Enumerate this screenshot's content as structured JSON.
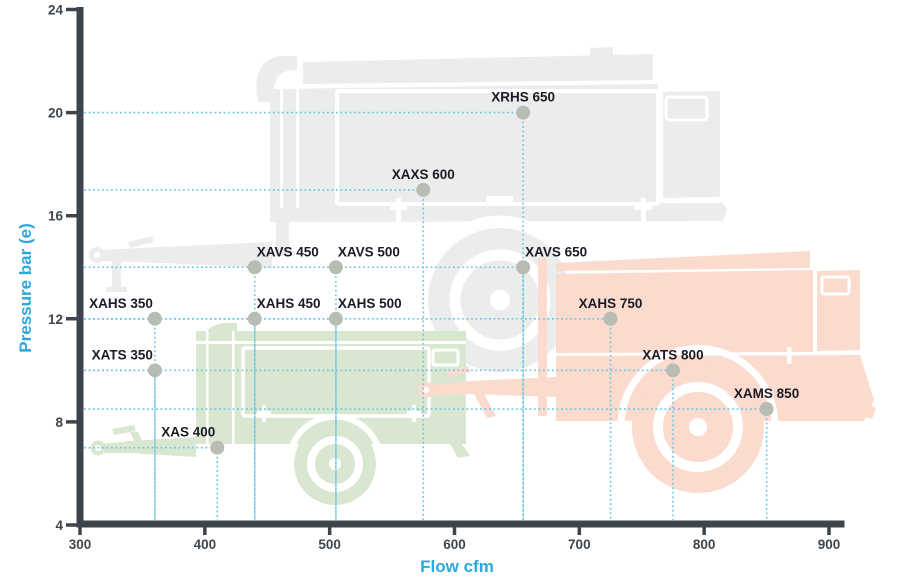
{
  "chart_data": {
    "type": "scatter",
    "title": "",
    "xlabel": "Flow cfm",
    "ylabel": "Pressure bar (e)",
    "xlim": [
      300,
      900
    ],
    "ylim": [
      4,
      24
    ],
    "x_ticks": [
      300,
      400,
      500,
      600,
      700,
      800,
      900
    ],
    "y_ticks": [
      4,
      8,
      12,
      16,
      20,
      24
    ],
    "legend": "none",
    "grid": "dotted cyan guide lines from each data point to both axes",
    "points": [
      {
        "label": "XAS 400",
        "flow_cfm": 410,
        "pressure_bar": 7,
        "label_anchor": "end"
      },
      {
        "label": "XATS 350",
        "flow_cfm": 360,
        "pressure_bar": 10,
        "label_anchor": "end"
      },
      {
        "label": "XAHS 350",
        "flow_cfm": 360,
        "pressure_bar": 12,
        "label_anchor": "end"
      },
      {
        "label": "XAVS 450",
        "flow_cfm": 440,
        "pressure_bar": 14,
        "label_anchor": "start"
      },
      {
        "label": "XAHS 450",
        "flow_cfm": 440,
        "pressure_bar": 12,
        "label_anchor": "start"
      },
      {
        "label": "XAVS 500",
        "flow_cfm": 505,
        "pressure_bar": 14,
        "label_anchor": "start"
      },
      {
        "label": "XAHS 500",
        "flow_cfm": 505,
        "pressure_bar": 12,
        "label_anchor": "start"
      },
      {
        "label": "XAXS 600",
        "flow_cfm": 575,
        "pressure_bar": 17,
        "label_anchor": "middle"
      },
      {
        "label": "XRHS 650",
        "flow_cfm": 655,
        "pressure_bar": 20,
        "label_anchor": "middle"
      },
      {
        "label": "XAVS 650",
        "flow_cfm": 655,
        "pressure_bar": 14,
        "label_anchor": "start"
      },
      {
        "label": "XAHS 750",
        "flow_cfm": 725,
        "pressure_bar": 12,
        "label_anchor": "middle"
      },
      {
        "label": "XATS 800",
        "flow_cfm": 775,
        "pressure_bar": 10,
        "label_anchor": "middle"
      },
      {
        "label": "XAMS 850",
        "flow_cfm": 850,
        "pressure_bar": 8.5,
        "label_anchor": "middle"
      }
    ]
  },
  "colors": {
    "axis": "#3d444c",
    "tick_label": "#3f464d",
    "axis_title": "#29a9dd",
    "guide_line": "#69c7e6",
    "point_fill": "#b7bdb3",
    "point_label": "#1b1b26",
    "silhouette_gray": "#ebedec",
    "silhouette_green": "#d9e7d1",
    "silhouette_salmon": "#fadbce"
  }
}
